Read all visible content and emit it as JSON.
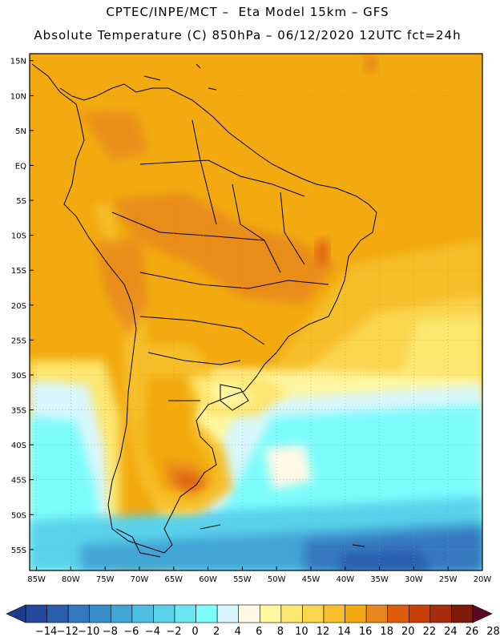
{
  "header": {
    "title_line1": "CPTEC/INPE/MCT –  Eta Model 15km – GFS",
    "title_line2": "Absolute Temperature (C) 850hPa – 06/12/2020 12UTC fct=24h"
  },
  "axes": {
    "lat_ticks": [
      "15N",
      "10N",
      "5N",
      "EQ",
      "5S",
      "10S",
      "15S",
      "20S",
      "25S",
      "30S",
      "35S",
      "40S",
      "45S",
      "50S",
      "55S"
    ],
    "lon_ticks": [
      "85W",
      "80W",
      "75W",
      "70W",
      "65W",
      "60W",
      "55W",
      "50W",
      "45W",
      "40W",
      "35W",
      "30W",
      "25W",
      "20W"
    ],
    "lat_range": [
      -58,
      16
    ],
    "lon_range": [
      -86,
      -20
    ],
    "grid": "dotted"
  },
  "colorbar": {
    "labels": [
      "-14",
      "-12",
      "-10",
      "-8",
      "-6",
      "-4",
      "-2",
      "0",
      "2",
      "4",
      "6",
      "8",
      "10",
      "12",
      "14",
      "16",
      "18",
      "20",
      "22",
      "24",
      "26",
      "28"
    ],
    "colors": [
      "#1f3c88",
      "#23479a",
      "#2b5fae",
      "#3478bd",
      "#3a8fcb",
      "#43a5d6",
      "#4fbde0",
      "#5ad2ea",
      "#6ae6f2",
      "#7dfcfc",
      "#d8f6fb",
      "#fff8e6",
      "#fff7a0",
      "#fde66f",
      "#fad64f",
      "#f6bf2b",
      "#f2aa10",
      "#e8871e",
      "#de5d0c",
      "#c9400a",
      "#a62c0a",
      "#7f1a0a",
      "#5c0820"
    ]
  },
  "field": {
    "variable": "Absolute Temperature (C) 850hPa",
    "ocean_south_pacific_C": 2,
    "far_south_ocean_C": -4,
    "argentina_coast_C": 7,
    "amazon_C": 19,
    "tropical_atlantic_C": 16,
    "patagonia_warm_spot_C": 21
  }
}
